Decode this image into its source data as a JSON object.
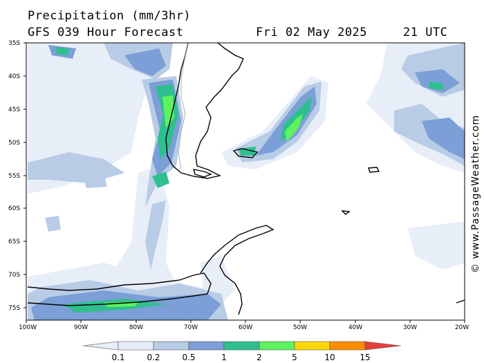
{
  "header": {
    "title": "Precipitation (mm/3hr)",
    "model_line": "GFS 039 Hour Forecast",
    "date": "Fri 02 May 2025",
    "time": "21 UTC"
  },
  "credit": "© www.PassageWeather.com",
  "axes": {
    "lat_labels": [
      "35S",
      "40S",
      "45S",
      "50S",
      "55S",
      "60S",
      "65S",
      "70S",
      "75S"
    ],
    "lon_labels": [
      "100W",
      "90W",
      "80W",
      "70W",
      "60W",
      "50W",
      "40W",
      "30W",
      "20W"
    ]
  },
  "colorbar": {
    "labels": [
      "0.1",
      "0.2",
      "0.5",
      "1",
      "2",
      "5",
      "10",
      "15"
    ],
    "colors": [
      "#e8eef8",
      "#b8cce6",
      "#7b9fd6",
      "#2fbf8f",
      "#5ff25f",
      "#ffd700",
      "#ff8c00",
      "#e83c3c"
    ]
  }
}
